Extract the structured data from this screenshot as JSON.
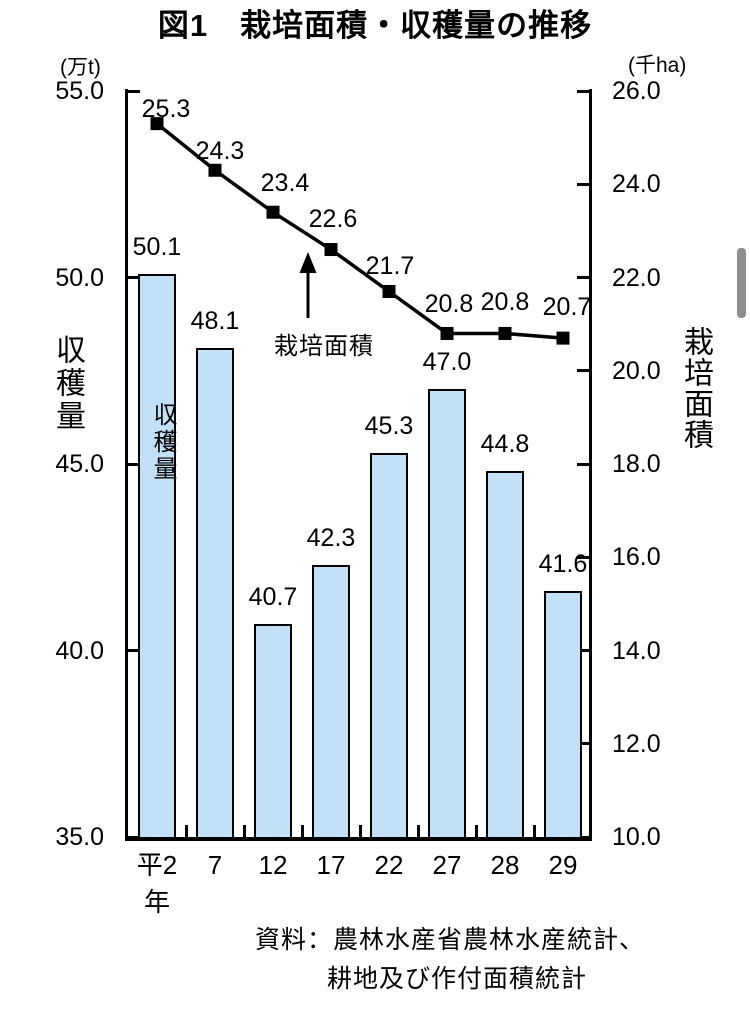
{
  "title": "図1　栽培面積・収穫量の推移",
  "chart_data": {
    "type": "bar",
    "title": "図1　栽培面積・収穫量の推移",
    "categories": [
      "平2",
      "7",
      "12",
      "17",
      "22",
      "27",
      "28",
      "29"
    ],
    "x_axis_note": "年",
    "series": [
      {
        "name": "収穫量",
        "type": "bar",
        "axis": "left",
        "unit": "万t",
        "values": [
          50.1,
          48.1,
          40.7,
          42.3,
          45.3,
          47.0,
          44.8,
          41.6
        ],
        "color": "#c2e0f6"
      },
      {
        "name": "栽培面積",
        "type": "line",
        "axis": "right",
        "unit": "千ha",
        "values": [
          25.3,
          24.3,
          23.4,
          22.6,
          21.7,
          20.8,
          20.8,
          20.7
        ],
        "color": "#000000"
      }
    ],
    "left_axis": {
      "unit": "(万t)",
      "label": "収穫量",
      "min": 35,
      "max": 55,
      "tick_step": 5,
      "ticks": [
        "55.0",
        "50.0",
        "45.0",
        "40.0",
        "35.0"
      ]
    },
    "right_axis": {
      "unit": "(千ha)",
      "label": "栽培面積",
      "min": 10,
      "max": 26,
      "tick_step": 2,
      "ticks": [
        "26.0",
        "24.0",
        "22.0",
        "20.0",
        "18.0",
        "16.0",
        "14.0",
        "12.0",
        "10.0"
      ]
    },
    "annotations": {
      "line_arrow_label": "栽培面積",
      "bar_inner_label": "収穫量"
    },
    "grid": false,
    "legend_position": "none"
  },
  "source": {
    "line1": "資料：農林水産省農林水産統計、",
    "line2": "耕地及び作付面積統計"
  },
  "colors": {
    "bar_fill": "#c2e0f6",
    "line": "#000000",
    "text": "#000000",
    "scrollbar": "#8f8f8f"
  }
}
